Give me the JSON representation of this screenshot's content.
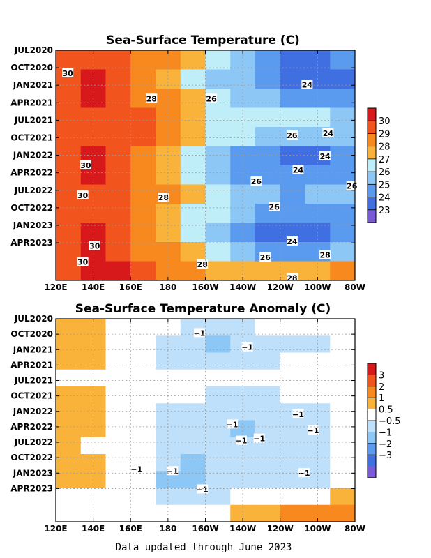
{
  "footer": "Data updated through June 2023",
  "chart_data": [
    {
      "type": "heatmap",
      "title": "Sea-Surface Temperature (C)",
      "xlabel": "",
      "ylabel": "",
      "x_ticks": [
        "120E",
        "140E",
        "160E",
        "180",
        "160W",
        "140W",
        "120W",
        "100W",
        "80W"
      ],
      "y_ticks": [
        "JUL2020",
        "OCT2020",
        "JAN2021",
        "APR2021",
        "JUL2021",
        "OCT2021",
        "JAN2022",
        "APR2022",
        "JUL2022",
        "OCT2022",
        "JAN2023",
        "APR2023"
      ],
      "grid": true,
      "colorbar": {
        "labels": [
          "30",
          "29",
          "28",
          "27",
          "26",
          "25",
          "24",
          "23"
        ],
        "colors": [
          "#d7191c",
          "#f2541d",
          "#f7891e",
          "#f9b33a",
          "#bfeef8",
          "#8dc7f5",
          "#5a9aef",
          "#3f6fe0",
          "#7a5ad6"
        ]
      },
      "contour_labels": [
        "30",
        "30",
        "30",
        "30",
        "30",
        "28",
        "28",
        "28",
        "28",
        "26",
        "26",
        "26",
        "26",
        "26",
        "26",
        "24",
        "24",
        "24",
        "24",
        "24",
        "28"
      ],
      "values": [
        [
          29.6,
          29.8,
          29.6,
          28.9,
          28.0,
          27.1,
          26.1,
          25.4,
          24.6,
          23.9,
          23.7,
          24.0
        ],
        [
          29.7,
          30.1,
          29.6,
          28.8,
          27.9,
          26.9,
          25.9,
          25.0,
          24.3,
          23.6,
          23.3,
          23.8
        ],
        [
          29.5,
          30.0,
          29.7,
          28.9,
          28.0,
          27.0,
          26.3,
          25.6,
          25.0,
          24.5,
          24.2,
          24.5
        ],
        [
          29.4,
          29.7,
          29.6,
          29.0,
          28.4,
          27.6,
          26.9,
          26.5,
          26.2,
          26.0,
          26.1,
          25.8
        ],
        [
          29.5,
          29.8,
          29.7,
          29.0,
          28.2,
          27.3,
          26.6,
          26.0,
          25.5,
          25.2,
          25.1,
          25.2
        ],
        [
          29.7,
          30.1,
          29.6,
          28.8,
          27.7,
          26.5,
          25.5,
          24.8,
          24.2,
          23.9,
          23.8,
          24.4
        ],
        [
          29.6,
          30.0,
          29.6,
          28.7,
          27.6,
          26.4,
          25.4,
          24.7,
          24.3,
          24.1,
          24.0,
          24.5
        ],
        [
          29.5,
          29.8,
          29.6,
          28.9,
          28.0,
          27.0,
          26.1,
          25.5,
          25.1,
          24.9,
          25.0,
          25.6
        ],
        [
          29.6,
          29.9,
          29.7,
          28.9,
          27.9,
          26.9,
          26.0,
          25.2,
          24.7,
          24.3,
          24.2,
          24.8
        ],
        [
          29.7,
          30.1,
          29.6,
          28.7,
          27.6,
          26.4,
          25.3,
          24.4,
          23.8,
          23.4,
          23.2,
          24.2
        ],
        [
          29.6,
          30.0,
          29.6,
          28.9,
          28.0,
          27.0,
          26.0,
          25.2,
          24.7,
          24.5,
          24.7,
          25.8
        ],
        [
          29.8,
          30.2,
          30.0,
          29.5,
          28.8,
          28.2,
          27.6,
          27.2,
          27.0,
          27.1,
          27.5,
          28.3
        ]
      ]
    },
    {
      "type": "heatmap",
      "title": "Sea-Surface Temperature Anomaly (C)",
      "xlabel": "",
      "ylabel": "",
      "x_ticks": [
        "120E",
        "140E",
        "160E",
        "180",
        "160W",
        "140W",
        "120W",
        "100W",
        "80W"
      ],
      "y_ticks": [
        "JUL2020",
        "OCT2020",
        "JAN2021",
        "APR2021",
        "JUL2021",
        "OCT2021",
        "JAN2022",
        "APR2022",
        "JUL2022",
        "OCT2022",
        "JAN2023",
        "APR2023"
      ],
      "grid": true,
      "colorbar": {
        "labels": [
          "3",
          "2",
          "1",
          "0.5",
          "−0.5",
          "−1",
          "−2",
          "−3"
        ],
        "colors": [
          "#d7191c",
          "#f2541d",
          "#f7891e",
          "#f9b33a",
          "#ffffff",
          "#bfe0fa",
          "#8dc7f5",
          "#5a9aef",
          "#3f6fe0",
          "#7a5ad6"
        ]
      },
      "contour_labels": [
        "−1",
        "−1",
        "−1",
        "−1",
        "−1",
        "−1",
        "−1",
        "−1",
        "−1",
        "−1",
        "−1"
      ],
      "values": [
        [
          0.6,
          0.5,
          0.3,
          -0.1,
          -0.4,
          -0.6,
          -0.7,
          -0.6,
          -0.5,
          -0.4,
          -0.3,
          -0.2
        ],
        [
          0.7,
          0.6,
          0.3,
          -0.3,
          -0.7,
          -1.0,
          -1.1,
          -1.0,
          -0.9,
          -0.8,
          -0.6,
          -0.3
        ],
        [
          0.6,
          0.7,
          0.4,
          -0.2,
          -0.6,
          -0.9,
          -0.9,
          -0.8,
          -0.6,
          -0.5,
          -0.4,
          -0.2
        ],
        [
          0.3,
          0.4,
          0.2,
          0.0,
          -0.2,
          -0.3,
          -0.3,
          -0.2,
          -0.1,
          0.1,
          0.2,
          0.3
        ],
        [
          0.6,
          0.5,
          0.2,
          -0.1,
          -0.3,
          -0.5,
          -0.6,
          -0.7,
          -0.6,
          -0.5,
          -0.3,
          0.0
        ],
        [
          0.6,
          0.5,
          0.2,
          -0.2,
          -0.6,
          -0.8,
          -0.9,
          -0.9,
          -0.9,
          -0.8,
          -0.7,
          -0.3
        ],
        [
          0.6,
          0.5,
          0.2,
          -0.3,
          -0.7,
          -0.9,
          -1.0,
          -1.1,
          -1.0,
          -0.9,
          -0.8,
          -0.3
        ],
        [
          0.5,
          0.4,
          0.1,
          -0.3,
          -0.8,
          -1.0,
          -1.0,
          -1.0,
          -0.9,
          -0.8,
          -0.6,
          -0.2
        ],
        [
          0.6,
          0.5,
          0.2,
          -0.4,
          -0.9,
          -1.1,
          -1.0,
          -0.9,
          -0.8,
          -0.7,
          -0.6,
          -0.3
        ],
        [
          0.7,
          0.6,
          0.2,
          -0.5,
          -1.1,
          -1.2,
          -1.0,
          -0.9,
          -0.8,
          -0.8,
          -0.7,
          -0.2
        ],
        [
          0.3,
          0.2,
          0.0,
          -0.3,
          -0.6,
          -0.7,
          -0.6,
          -0.5,
          -0.3,
          -0.1,
          0.2,
          0.6
        ],
        [
          0.4,
          0.3,
          0.2,
          0.1,
          0.1,
          0.2,
          0.3,
          0.5,
          0.8,
          1.0,
          1.3,
          1.8
        ]
      ]
    }
  ]
}
